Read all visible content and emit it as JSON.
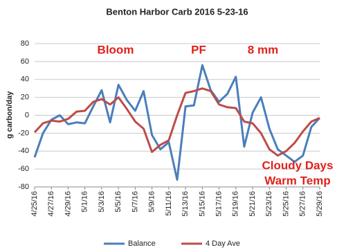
{
  "chart_data": {
    "type": "line",
    "title": "Benton Harbor Carb 2016 5-23-16",
    "y_label": "g carbon/day",
    "categories": [
      "4/25/16",
      null,
      "4/27/16",
      null,
      "4/29/16",
      null,
      "5/1/16",
      null,
      "5/3/16",
      null,
      "5/5/16",
      null,
      "5/7/16",
      null,
      "5/9/16",
      null,
      "5/11/16",
      null,
      "5/13/16",
      null,
      "5/15/16",
      null,
      "5/17/16",
      null,
      "5/19/16",
      null,
      "5/21/16",
      null,
      "5/23/16",
      null,
      "5/25/16",
      null,
      "5/27/16",
      null,
      "5/29/16"
    ],
    "series": [
      {
        "name": "Balance",
        "color": "#4a7ebb",
        "values": [
          -47,
          -20,
          -5,
          0,
          -10,
          -8,
          -9,
          10,
          28,
          -8,
          34,
          17,
          5,
          27,
          -22,
          -38,
          -30,
          -72,
          10,
          11,
          56,
          28,
          15,
          24,
          43,
          -35,
          3,
          20,
          -15,
          -38,
          -45,
          -52,
          -45,
          -13,
          -3
        ]
      },
      {
        "name": "4 Day Ave",
        "color": "#be4b48",
        "values": [
          -19,
          -9,
          -6,
          -7,
          -4,
          4,
          5,
          15,
          18,
          12,
          20,
          7,
          -7,
          -15,
          -41,
          -33,
          -28,
          0,
          25,
          27,
          30,
          27,
          12,
          9,
          8,
          -7,
          -9,
          -20,
          -38,
          -45,
          -40,
          -31,
          -18,
          -7,
          -3
        ]
      }
    ],
    "annotations": [
      "Bloom",
      "PF",
      "8 mm",
      "Cloudy Days",
      "Warm Temp"
    ],
    "annotation_color": "#e0201b",
    "ylim": [
      -80,
      80
    ],
    "yticks": [
      -80,
      -60,
      -40,
      -20,
      0,
      20,
      40,
      60,
      80
    ],
    "grid": true,
    "legend": "bottom"
  }
}
